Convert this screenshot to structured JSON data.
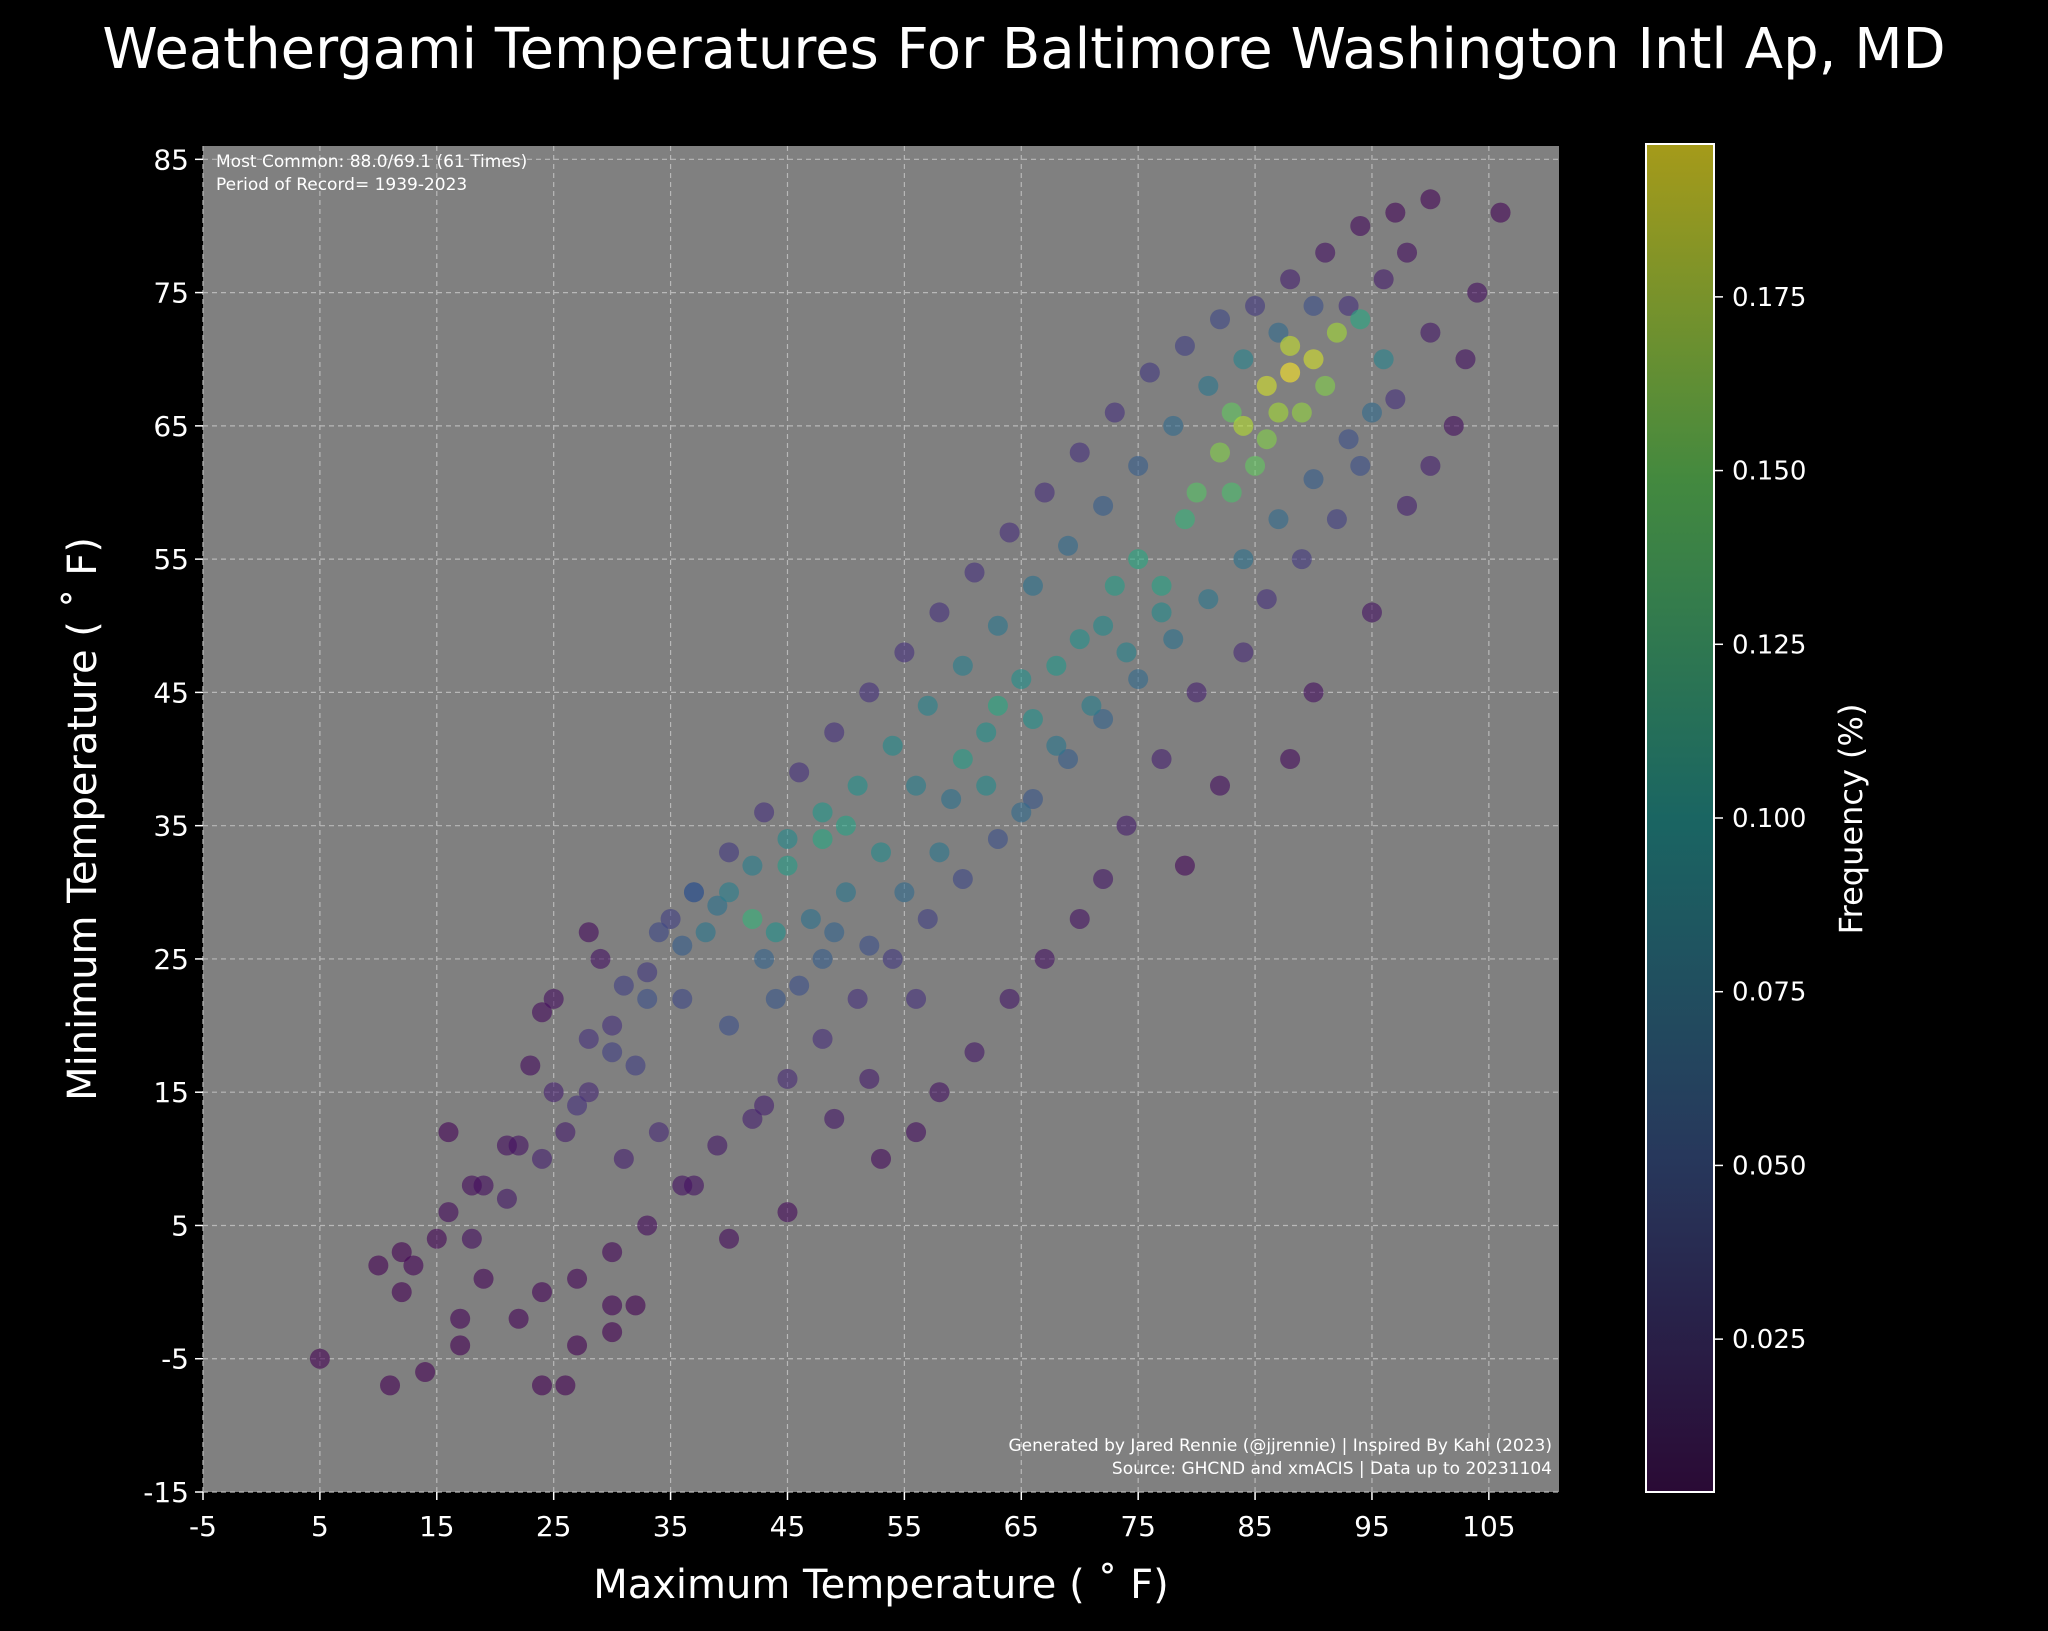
{
  "chart_data": {
    "type": "scatter",
    "title": "Weathergami Temperatures For Baltimore Washington Intl Ap, MD",
    "xlabel": "Maximum Temperature ( ˚ F)",
    "ylabel": "Minimum Temperature ( ˚ F)",
    "xlim": [
      -5,
      111
    ],
    "ylim": [
      -15,
      86
    ],
    "xticks": [
      -5,
      5,
      15,
      25,
      35,
      45,
      55,
      65,
      75,
      85,
      95,
      105
    ],
    "yticks": [
      -15,
      -5,
      5,
      15,
      25,
      35,
      45,
      55,
      65,
      75,
      85
    ],
    "grid": true,
    "colorbar": {
      "label": "Frequency (%)",
      "range": [
        0.003,
        0.197
      ],
      "ticks": [
        0.025,
        0.05,
        0.075,
        0.1,
        0.125,
        0.15,
        0.175
      ],
      "colormap": "viridis"
    },
    "annotation_top_left": [
      "Most Common: 88.0/69.1 (61 Times)",
      "Period of Record= 1939-2023"
    ],
    "annotation_bottom_right": [
      "Generated by Jared Rennie (@jjrennie) | Inspired By Kahl (2023)",
      "Source: GHCND and xmACIS | Data up to 20231104"
    ],
    "series": [
      {
        "values": [
          [
            5,
            -5,
            0.003
          ],
          [
            11,
            -7,
            0.003
          ],
          [
            14,
            -6,
            0.003
          ],
          [
            10,
            2,
            0.003
          ],
          [
            12,
            3,
            0.003
          ],
          [
            13,
            2,
            0.004
          ],
          [
            12,
            0,
            0.003
          ],
          [
            17,
            -4,
            0.003
          ],
          [
            17,
            -2,
            0.004
          ],
          [
            24,
            -7,
            0.003
          ],
          [
            26,
            -7,
            0.003
          ],
          [
            27,
            -4,
            0.003
          ],
          [
            30,
            -1,
            0.004
          ],
          [
            32,
            -1,
            0.003
          ],
          [
            30,
            -3,
            0.003
          ],
          [
            24,
            0,
            0.004
          ],
          [
            22,
            -2,
            0.004
          ],
          [
            19,
            1,
            0.005
          ],
          [
            16,
            12,
            0.004
          ],
          [
            15,
            4,
            0.005
          ],
          [
            18,
            8,
            0.008
          ],
          [
            21,
            11,
            0.01
          ],
          [
            23,
            17,
            0.009
          ],
          [
            24,
            21,
            0.008
          ],
          [
            25,
            22,
            0.01
          ],
          [
            28,
            27,
            0.008
          ],
          [
            29,
            25,
            0.012
          ],
          [
            26,
            12,
            0.018
          ],
          [
            28,
            15,
            0.025
          ],
          [
            30,
            20,
            0.03
          ],
          [
            33,
            24,
            0.035
          ],
          [
            35,
            28,
            0.04
          ],
          [
            37,
            30,
            0.06
          ],
          [
            40,
            30,
            0.085
          ],
          [
            42,
            28,
            0.13
          ],
          [
            44,
            27,
            0.1
          ],
          [
            45,
            32,
            0.11
          ],
          [
            48,
            34,
            0.12
          ],
          [
            50,
            35,
            0.115
          ],
          [
            53,
            33,
            0.095
          ],
          [
            38,
            27,
            0.08
          ],
          [
            36,
            22,
            0.045
          ],
          [
            40,
            20,
            0.05
          ],
          [
            44,
            22,
            0.055
          ],
          [
            48,
            25,
            0.06
          ],
          [
            32,
            17,
            0.04
          ],
          [
            31,
            10,
            0.02
          ],
          [
            34,
            12,
            0.025
          ],
          [
            37,
            8,
            0.012
          ],
          [
            40,
            4,
            0.008
          ],
          [
            45,
            6,
            0.007
          ],
          [
            43,
            14,
            0.02
          ],
          [
            49,
            13,
            0.015
          ],
          [
            52,
            16,
            0.018
          ],
          [
            53,
            10,
            0.008
          ],
          [
            56,
            12,
            0.01
          ],
          [
            58,
            15,
            0.012
          ],
          [
            61,
            18,
            0.015
          ],
          [
            56,
            22,
            0.03
          ],
          [
            52,
            26,
            0.05
          ],
          [
            55,
            30,
            0.07
          ],
          [
            58,
            33,
            0.08
          ],
          [
            62,
            38,
            0.095
          ],
          [
            60,
            40,
            0.11
          ],
          [
            63,
            44,
            0.12
          ],
          [
            66,
            43,
            0.1
          ],
          [
            68,
            47,
            0.105
          ],
          [
            70,
            49,
            0.1
          ],
          [
            72,
            50,
            0.095
          ],
          [
            73,
            53,
            0.11
          ],
          [
            75,
            55,
            0.12
          ],
          [
            77,
            53,
            0.115
          ],
          [
            79,
            58,
            0.13
          ],
          [
            80,
            60,
            0.145
          ],
          [
            82,
            63,
            0.16
          ],
          [
            84,
            65,
            0.175
          ],
          [
            86,
            68,
            0.185
          ],
          [
            88,
            69,
            0.197
          ],
          [
            90,
            70,
            0.185
          ],
          [
            88,
            71,
            0.18
          ],
          [
            92,
            72,
            0.17
          ],
          [
            91,
            68,
            0.16
          ],
          [
            87,
            66,
            0.17
          ],
          [
            85,
            62,
            0.15
          ],
          [
            83,
            60,
            0.14
          ],
          [
            94,
            73,
            0.12
          ],
          [
            96,
            70,
            0.09
          ],
          [
            95,
            66,
            0.07
          ],
          [
            94,
            62,
            0.05
          ],
          [
            92,
            58,
            0.04
          ],
          [
            89,
            55,
            0.035
          ],
          [
            86,
            52,
            0.03
          ],
          [
            84,
            48,
            0.025
          ],
          [
            80,
            45,
            0.02
          ],
          [
            77,
            40,
            0.02
          ],
          [
            74,
            35,
            0.018
          ],
          [
            72,
            31,
            0.015
          ],
          [
            70,
            28,
            0.012
          ],
          [
            67,
            25,
            0.012
          ],
          [
            64,
            22,
            0.015
          ],
          [
            82,
            38,
            0.01
          ],
          [
            88,
            40,
            0.008
          ],
          [
            79,
            32,
            0.006
          ],
          [
            90,
            45,
            0.01
          ],
          [
            95,
            51,
            0.012
          ],
          [
            98,
            59,
            0.02
          ],
          [
            100,
            62,
            0.02
          ],
          [
            102,
            65,
            0.01
          ],
          [
            103,
            70,
            0.012
          ],
          [
            104,
            75,
            0.01
          ],
          [
            106,
            81,
            0.005
          ],
          [
            100,
            82,
            0.005
          ],
          [
            97,
            81,
            0.006
          ],
          [
            94,
            80,
            0.008
          ],
          [
            91,
            78,
            0.012
          ],
          [
            88,
            76,
            0.02
          ],
          [
            85,
            74,
            0.035
          ],
          [
            82,
            73,
            0.045
          ],
          [
            79,
            71,
            0.04
          ],
          [
            76,
            69,
            0.035
          ],
          [
            73,
            66,
            0.03
          ],
          [
            70,
            63,
            0.03
          ],
          [
            67,
            60,
            0.028
          ],
          [
            64,
            57,
            0.028
          ],
          [
            61,
            54,
            0.03
          ],
          [
            58,
            51,
            0.03
          ],
          [
            55,
            48,
            0.03
          ],
          [
            52,
            45,
            0.03
          ],
          [
            49,
            42,
            0.03
          ],
          [
            46,
            39,
            0.03
          ],
          [
            43,
            36,
            0.03
          ],
          [
            40,
            33,
            0.035
          ],
          [
            37,
            30,
            0.045
          ],
          [
            34,
            27,
            0.045
          ],
          [
            31,
            23,
            0.04
          ],
          [
            28,
            19,
            0.03
          ],
          [
            25,
            15,
            0.02
          ],
          [
            22,
            11,
            0.012
          ],
          [
            19,
            8,
            0.01
          ],
          [
            16,
            6,
            0.008
          ],
          [
            98,
            78,
            0.01
          ],
          [
            96,
            76,
            0.018
          ],
          [
            93,
            74,
            0.03
          ],
          [
            90,
            74,
            0.05
          ],
          [
            87,
            72,
            0.07
          ],
          [
            84,
            70,
            0.09
          ],
          [
            81,
            68,
            0.08
          ],
          [
            78,
            65,
            0.07
          ],
          [
            75,
            62,
            0.06
          ],
          [
            72,
            59,
            0.06
          ],
          [
            69,
            56,
            0.07
          ],
          [
            66,
            53,
            0.075
          ],
          [
            63,
            50,
            0.08
          ],
          [
            60,
            47,
            0.085
          ],
          [
            57,
            44,
            0.09
          ],
          [
            54,
            41,
            0.095
          ],
          [
            51,
            38,
            0.1
          ],
          [
            48,
            36,
            0.105
          ],
          [
            45,
            34,
            0.095
          ],
          [
            42,
            32,
            0.085
          ],
          [
            39,
            29,
            0.075
          ],
          [
            36,
            26,
            0.06
          ],
          [
            33,
            22,
            0.05
          ],
          [
            30,
            18,
            0.04
          ],
          [
            27,
            14,
            0.03
          ],
          [
            24,
            10,
            0.02
          ],
          [
            21,
            7,
            0.015
          ],
          [
            18,
            4,
            0.01
          ],
          [
            100,
            72,
            0.015
          ],
          [
            97,
            67,
            0.03
          ],
          [
            93,
            64,
            0.05
          ],
          [
            90,
            61,
            0.06
          ],
          [
            87,
            58,
            0.07
          ],
          [
            84,
            55,
            0.075
          ],
          [
            81,
            52,
            0.08
          ],
          [
            78,
            49,
            0.075
          ],
          [
            75,
            46,
            0.07
          ],
          [
            72,
            43,
            0.065
          ],
          [
            69,
            40,
            0.06
          ],
          [
            66,
            37,
            0.055
          ],
          [
            63,
            34,
            0.05
          ],
          [
            60,
            31,
            0.045
          ],
          [
            57,
            28,
            0.04
          ],
          [
            54,
            25,
            0.035
          ],
          [
            51,
            22,
            0.03
          ],
          [
            48,
            19,
            0.028
          ],
          [
            45,
            16,
            0.025
          ],
          [
            42,
            13,
            0.02
          ],
          [
            39,
            11,
            0.015
          ],
          [
            36,
            8,
            0.012
          ],
          [
            33,
            5,
            0.008
          ],
          [
            30,
            3,
            0.006
          ],
          [
            27,
            1,
            0.005
          ],
          [
            65,
            36,
            0.07
          ],
          [
            68,
            41,
            0.08
          ],
          [
            71,
            44,
            0.085
          ],
          [
            74,
            48,
            0.09
          ],
          [
            77,
            51,
            0.095
          ],
          [
            56,
            38,
            0.085
          ],
          [
            59,
            37,
            0.075
          ],
          [
            50,
            30,
            0.08
          ],
          [
            47,
            28,
            0.075
          ],
          [
            43,
            25,
            0.065
          ],
          [
            46,
            23,
            0.05
          ],
          [
            49,
            27,
            0.065
          ],
          [
            62,
            42,
            0.1
          ],
          [
            65,
            46,
            0.1
          ],
          [
            86,
            64,
            0.16
          ],
          [
            89,
            66,
            0.165
          ],
          [
            83,
            66,
            0.15
          ]
        ]
      }
    ]
  }
}
